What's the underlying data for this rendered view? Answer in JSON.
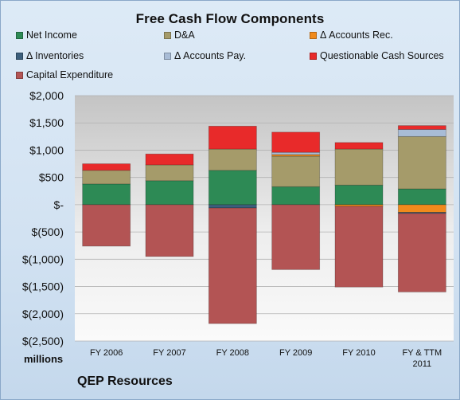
{
  "chart_data": {
    "type": "bar",
    "stacked": true,
    "title": "Free Cash Flow Components",
    "categories": [
      "FY 2006",
      "FY 2007",
      "FY 2008",
      "FY 2009",
      "FY 2010",
      "FY & TTM 2011"
    ],
    "ylim": [
      -2500,
      2000
    ],
    "yticks": [
      2000,
      1500,
      1000,
      500,
      0,
      -500,
      -1000,
      -1500,
      -2000,
      -2500
    ],
    "ytick_labels": [
      "$2,000",
      "$1,500",
      "$1,000",
      "$500",
      "$-",
      "$(500)",
      "$(1,000)",
      "$(1,500)",
      "$(2,000)",
      "$(2,500)"
    ],
    "y_units_label": "millions",
    "grid": true,
    "legend_position": "top",
    "series": [
      {
        "name": "Net Income",
        "color": "#2d8a55",
        "values": [
          380,
          440,
          630,
          330,
          360,
          290
        ]
      },
      {
        "name": "D&A",
        "color": "#a59b6a",
        "values": [
          250,
          290,
          390,
          560,
          660,
          960
        ]
      },
      {
        "name": "Δ Accounts Rec.",
        "color": "#f08a1c",
        "values": [
          0,
          0,
          0,
          30,
          -30,
          -140
        ]
      },
      {
        "name": "Δ Inventories",
        "color": "#3c5f7c",
        "values": [
          0,
          0,
          -60,
          0,
          0,
          -20
        ]
      },
      {
        "name": "Δ Accounts Pay.",
        "color": "#a8bcd6",
        "values": [
          0,
          0,
          0,
          40,
          0,
          130
        ]
      },
      {
        "name": "Questionable Cash Sources",
        "color": "#e82a2a",
        "values": [
          120,
          200,
          420,
          370,
          120,
          70
        ]
      },
      {
        "name": "Capital Expenditure",
        "color": "#b35454",
        "values": [
          -760,
          -950,
          -2120,
          -1190,
          -1480,
          -1440
        ]
      }
    ]
  },
  "footer": {
    "company": "QEP Resources"
  }
}
